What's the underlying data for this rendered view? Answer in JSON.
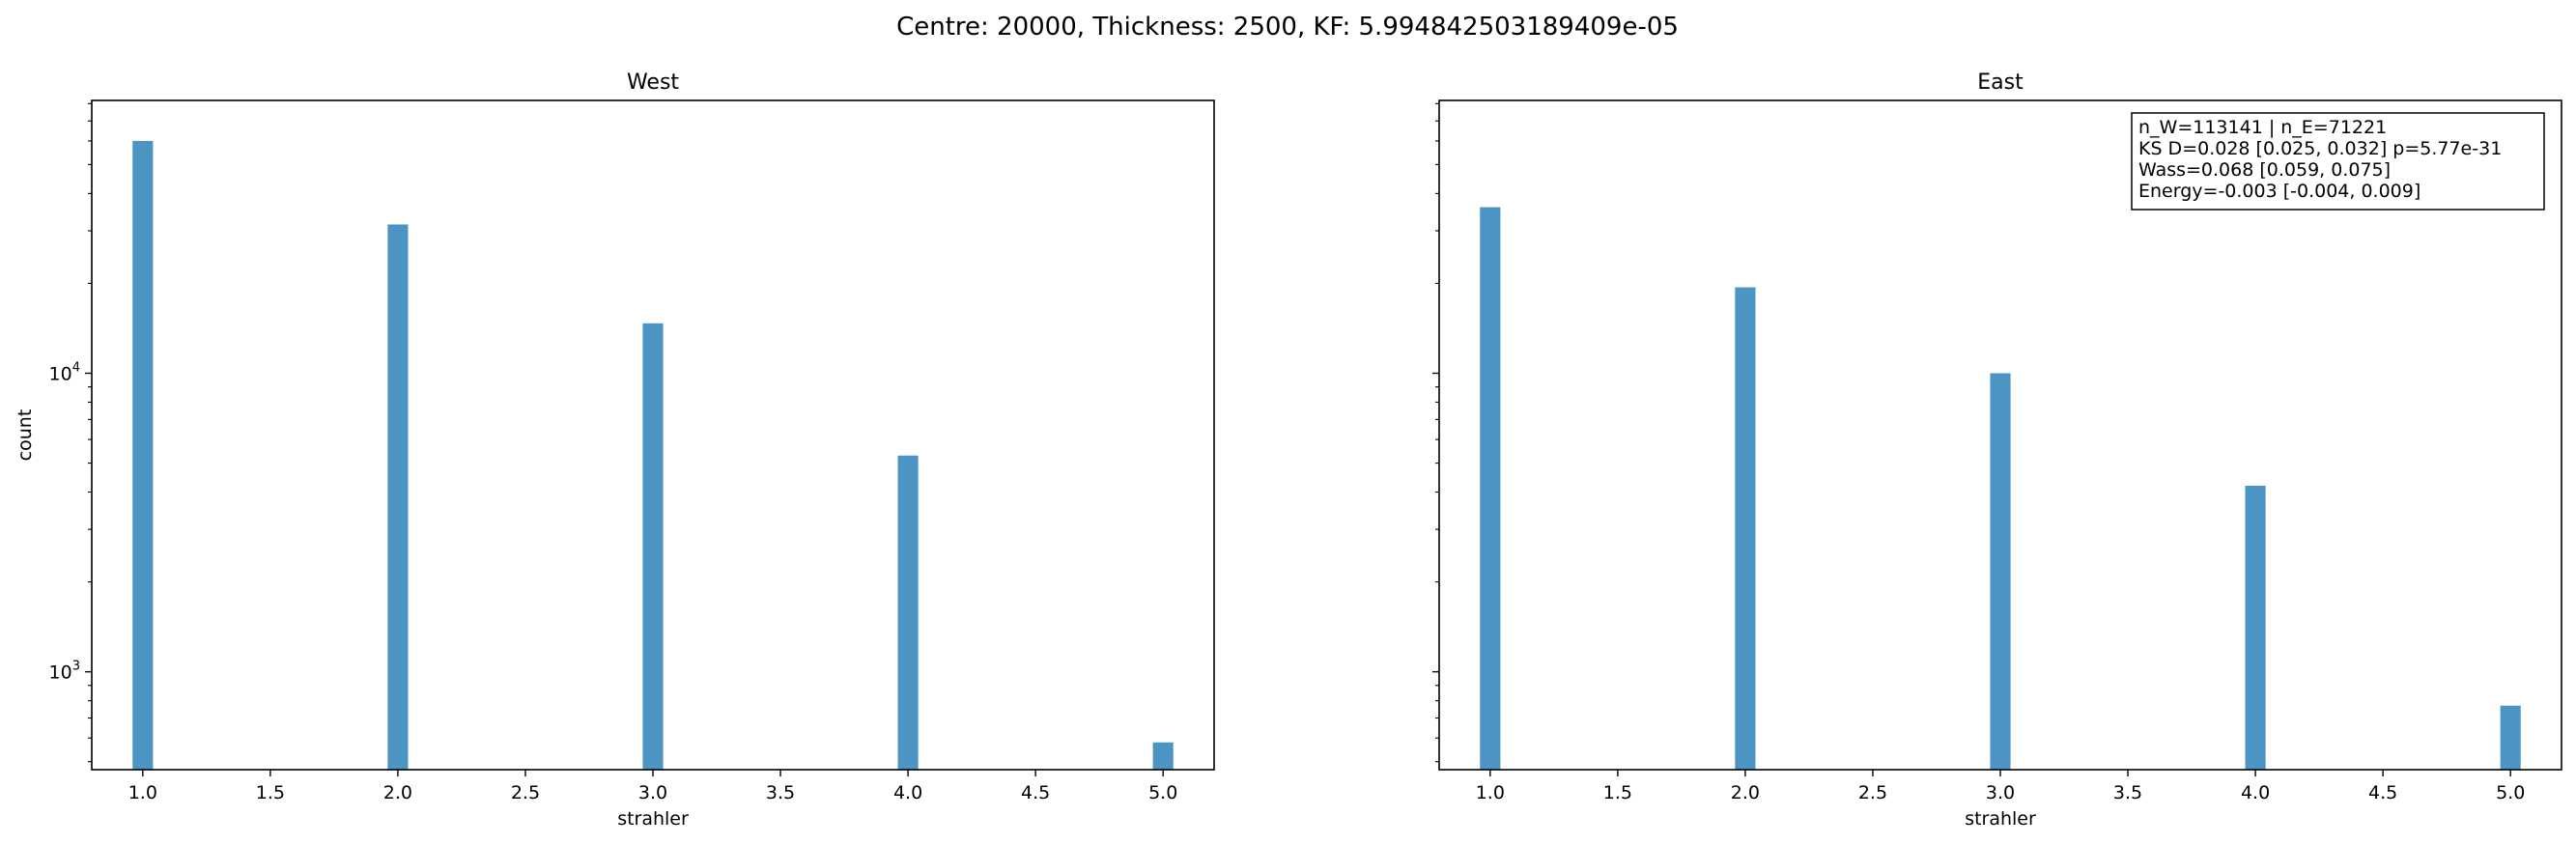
{
  "suptitle": "Centre: 20000, Thickness: 2500, KF: 5.994842503189409e-05",
  "colors": {
    "bar": "#4c94c4",
    "axis": "#000000",
    "background": "#ffffff"
  },
  "chart_data": [
    {
      "type": "bar",
      "title": "West",
      "xlabel": "strahler",
      "ylabel": "count",
      "yscale": "log",
      "xlim": [
        0.8,
        5.2
      ],
      "ylim": [
        470,
        82000
      ],
      "x_ticks": [
        1.0,
        1.5,
        2.0,
        2.5,
        3.0,
        3.5,
        4.0,
        4.5,
        5.0
      ],
      "x_tick_labels": [
        "1.0",
        "1.5",
        "2.0",
        "2.5",
        "3.0",
        "3.5",
        "4.0",
        "4.5",
        "5.0"
      ],
      "y_ticks": [
        1000,
        10000
      ],
      "y_tick_labels": [
        {
          "base": "10",
          "exp": "3"
        },
        {
          "base": "10",
          "exp": "4"
        }
      ],
      "x": [
        1.0,
        2.0,
        3.0,
        4.0,
        5.0
      ],
      "values": [
        60000,
        31500,
        14700,
        5300,
        580
      ],
      "bar_width": 0.08,
      "legend": null
    },
    {
      "type": "bar",
      "title": "East",
      "xlabel": "strahler",
      "ylabel": "",
      "yscale": "log",
      "xlim": [
        0.8,
        5.2
      ],
      "ylim": [
        470,
        82000
      ],
      "x_ticks": [
        1.0,
        1.5,
        2.0,
        2.5,
        3.0,
        3.5,
        4.0,
        4.5,
        5.0
      ],
      "x_tick_labels": [
        "1.0",
        "1.5",
        "2.0",
        "2.5",
        "3.0",
        "3.5",
        "4.0",
        "4.5",
        "5.0"
      ],
      "y_ticks": [
        1000,
        10000
      ],
      "y_tick_labels": [],
      "x": [
        1.0,
        2.0,
        3.0,
        4.0,
        5.0
      ],
      "values": [
        36000,
        19400,
        10000,
        4200,
        770
      ],
      "bar_width": 0.08,
      "annotation": [
        "n_W=113141 | n_E=71221",
        "KS D=0.028 [0.025, 0.032]  p=5.77e-31",
        "Wass=0.068 [0.059, 0.075]",
        "Energy=-0.003 [-0.004, 0.009]"
      ],
      "annotation_position": "top-right",
      "legend": null
    }
  ]
}
